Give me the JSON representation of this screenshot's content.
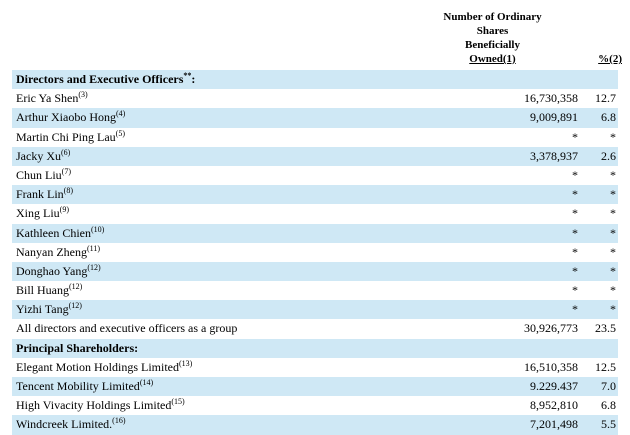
{
  "header": {
    "shares_lines": [
      "Number of Ordinary",
      "Shares",
      "Beneficially",
      "Owned(1)"
    ],
    "pct": "%(2)"
  },
  "rows": [
    {
      "name": "Directors and Executive Officers",
      "sup": "**",
      "suffix": ":",
      "section": true,
      "shade": true,
      "shares": "",
      "pct": ""
    },
    {
      "name": "Eric Ya Shen",
      "sup": "(3)",
      "suffix": "",
      "section": false,
      "shade": false,
      "shares": "16,730,358",
      "pct": "12.7"
    },
    {
      "name": "Arthur Xiaobo Hong",
      "sup": "(4)",
      "suffix": "",
      "section": false,
      "shade": true,
      "shares": "9,009,891",
      "pct": "6.8"
    },
    {
      "name": "Martin Chi Ping Lau",
      "sup": "(5)",
      "suffix": "",
      "section": false,
      "shade": false,
      "shares": "*",
      "pct": "*"
    },
    {
      "name": "Jacky Xu",
      "sup": "(6)",
      "suffix": "",
      "section": false,
      "shade": true,
      "shares": "3,378,937",
      "pct": "2.6"
    },
    {
      "name": "Chun Liu",
      "sup": "(7)",
      "suffix": "",
      "section": false,
      "shade": false,
      "shares": "*",
      "pct": "*"
    },
    {
      "name": "Frank Lin",
      "sup": "(8)",
      "suffix": "",
      "section": false,
      "shade": true,
      "shares": "*",
      "pct": "*"
    },
    {
      "name": "Xing Liu",
      "sup": "(9)",
      "suffix": "",
      "section": false,
      "shade": false,
      "shares": "*",
      "pct": "*"
    },
    {
      "name": "Kathleen Chien",
      "sup": "(10)",
      "suffix": "",
      "section": false,
      "shade": true,
      "shares": "*",
      "pct": "*"
    },
    {
      "name": "Nanyan Zheng",
      "sup": "(11)",
      "suffix": "",
      "section": false,
      "shade": false,
      "shares": "*",
      "pct": "*"
    },
    {
      "name": "Donghao Yang",
      "sup": "(12)",
      "suffix": "",
      "section": false,
      "shade": true,
      "shares": "*",
      "pct": "*"
    },
    {
      "name": "Bill Huang",
      "sup": "(12)",
      "suffix": "",
      "section": false,
      "shade": false,
      "shares": "*",
      "pct": "*"
    },
    {
      "name": "Yizhi Tang",
      "sup": "(12)",
      "suffix": "",
      "section": false,
      "shade": true,
      "shares": "*",
      "pct": "*"
    },
    {
      "name": "All directors and executive officers as a group",
      "sup": "",
      "suffix": "",
      "section": false,
      "shade": false,
      "shares": "30,926,773",
      "pct": "23.5"
    },
    {
      "name": "Principal Shareholders",
      "sup": "",
      "suffix": ":",
      "section": true,
      "shade": true,
      "shares": "",
      "pct": ""
    },
    {
      "name": "Elegant Motion Holdings Limited",
      "sup": "(13)",
      "suffix": "",
      "section": false,
      "shade": false,
      "shares": "16,510,358",
      "pct": "12.5"
    },
    {
      "name": "Tencent Mobility Limited",
      "sup": "(14)",
      "suffix": "",
      "section": false,
      "shade": true,
      "shares": "9.229.437",
      "pct": "7.0"
    },
    {
      "name": "High Vivacity Holdings Limited",
      "sup": "(15)",
      "suffix": "",
      "section": false,
      "shade": false,
      "shares": "8,952,810",
      "pct": "6.8"
    },
    {
      "name": "Windcreek Limited.",
      "sup": "(16)",
      "suffix": "",
      "section": false,
      "shade": true,
      "shares": "7,201,498",
      "pct": "5.5"
    }
  ]
}
